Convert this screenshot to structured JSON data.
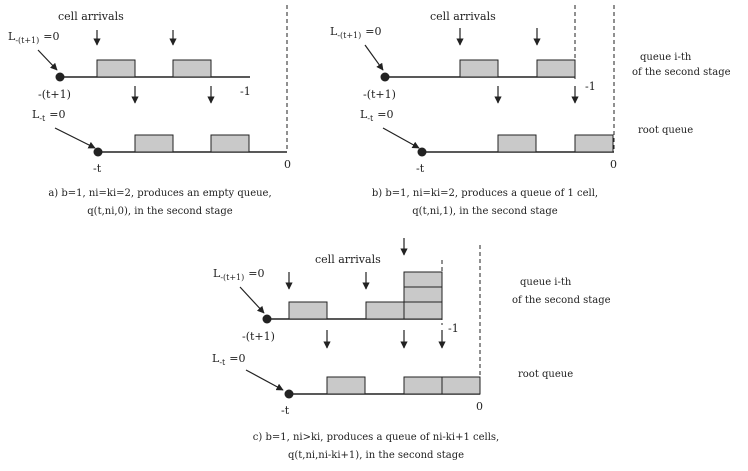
{
  "colors": {
    "ink": "#222222",
    "cell_fill": "#c9c9c9",
    "background": "#ffffff"
  },
  "texts": {
    "cell_arrivals": "cell arrivals",
    "L_main": "L",
    "sub_t1": "-(t+1)",
    "sub_t": "-t",
    "eq_zero": "=0",
    "tick_t1": "-(t+1)",
    "tick_t": "-t",
    "tick_m1": "-1",
    "tick_0": "0",
    "queue_ith_line1": "queue i-th",
    "queue_ith_line2": "of the second stage",
    "root_queue": "root queue"
  },
  "captions": {
    "a_line1": "a) b=1, ni=ki=2, produces an empty queue,",
    "a_line2": "q(t,ni,0), in the second stage",
    "b_line1": "b) b=1, ni=ki=2, produces a queue of 1 cell,",
    "b_line2": "q(t,ni,1), in the second stage",
    "c_line1": "c) b=1, ni>ki, produces a queue of ni-ki+1 cells,",
    "c_line2": "q(t,ni,ni-ki+1), in the second stage"
  }
}
